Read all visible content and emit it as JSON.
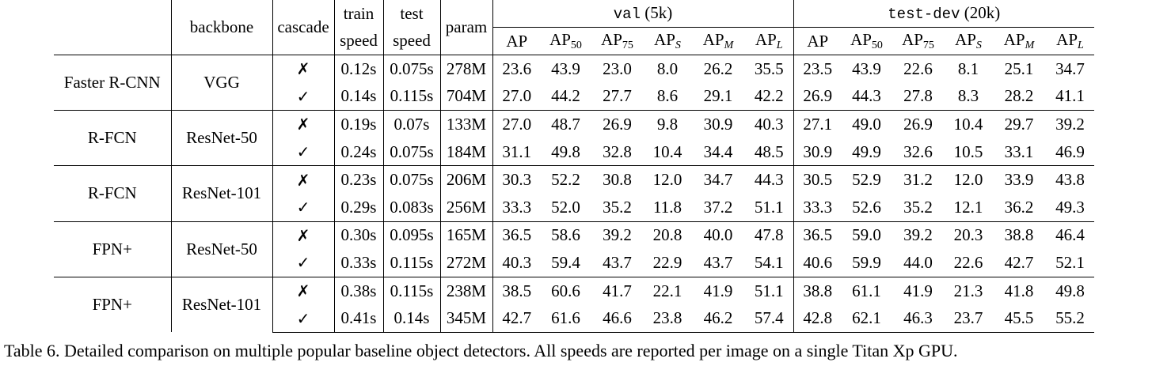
{
  "header": {
    "backbone": "backbone",
    "cascade": "cascade",
    "train": "train",
    "train_speed": "speed",
    "test": "test",
    "test_speed": "speed",
    "param": "param",
    "val_mono": "val",
    "val_size": "(5k)",
    "testdev_mono": "test-dev",
    "testdev_size": "(20k)",
    "metrics": [
      {
        "base": "AP",
        "sub": "",
        "italic": false
      },
      {
        "base": "AP",
        "sub": "50",
        "italic": false
      },
      {
        "base": "AP",
        "sub": "75",
        "italic": false
      },
      {
        "base": "AP",
        "sub": "S",
        "italic": true
      },
      {
        "base": "AP",
        "sub": "M",
        "italic": true
      },
      {
        "base": "AP",
        "sub": "L",
        "italic": true
      }
    ]
  },
  "marks": {
    "no": "✗",
    "yes": "✓"
  },
  "groups": [
    {
      "detector": "Faster R-CNN",
      "backbone": "VGG",
      "rows": [
        {
          "cascade": "no",
          "train": "0.12s",
          "test": "0.075s",
          "param": "278M",
          "val": [
            "23.6",
            "43.9",
            "23.0",
            "8.0",
            "26.2",
            "35.5"
          ],
          "testdev": [
            "23.5",
            "43.9",
            "22.6",
            "8.1",
            "25.1",
            "34.7"
          ]
        },
        {
          "cascade": "yes",
          "train": "0.14s",
          "test": "0.115s",
          "param": "704M",
          "val": [
            "27.0",
            "44.2",
            "27.7",
            "8.6",
            "29.1",
            "42.2"
          ],
          "testdev": [
            "26.9",
            "44.3",
            "27.8",
            "8.3",
            "28.2",
            "41.1"
          ]
        }
      ]
    },
    {
      "detector": "R-FCN",
      "backbone": "ResNet-50",
      "rows": [
        {
          "cascade": "no",
          "train": "0.19s",
          "test": "0.07s",
          "param": "133M",
          "val": [
            "27.0",
            "48.7",
            "26.9",
            "9.8",
            "30.9",
            "40.3"
          ],
          "testdev": [
            "27.1",
            "49.0",
            "26.9",
            "10.4",
            "29.7",
            "39.2"
          ]
        },
        {
          "cascade": "yes",
          "train": "0.24s",
          "test": "0.075s",
          "param": "184M",
          "val": [
            "31.1",
            "49.8",
            "32.8",
            "10.4",
            "34.4",
            "48.5"
          ],
          "testdev": [
            "30.9",
            "49.9",
            "32.6",
            "10.5",
            "33.1",
            "46.9"
          ]
        }
      ]
    },
    {
      "detector": "R-FCN",
      "backbone": "ResNet-101",
      "rows": [
        {
          "cascade": "no",
          "train": "0.23s",
          "test": "0.075s",
          "param": "206M",
          "val": [
            "30.3",
            "52.2",
            "30.8",
            "12.0",
            "34.7",
            "44.3"
          ],
          "testdev": [
            "30.5",
            "52.9",
            "31.2",
            "12.0",
            "33.9",
            "43.8"
          ]
        },
        {
          "cascade": "yes",
          "train": "0.29s",
          "test": "0.083s",
          "param": "256M",
          "val": [
            "33.3",
            "52.0",
            "35.2",
            "11.8",
            "37.2",
            "51.1"
          ],
          "testdev": [
            "33.3",
            "52.6",
            "35.2",
            "12.1",
            "36.2",
            "49.3"
          ]
        }
      ]
    },
    {
      "detector": "FPN+",
      "backbone": "ResNet-50",
      "rows": [
        {
          "cascade": "no",
          "train": "0.30s",
          "test": "0.095s",
          "param": "165M",
          "val": [
            "36.5",
            "58.6",
            "39.2",
            "20.8",
            "40.0",
            "47.8"
          ],
          "testdev": [
            "36.5",
            "59.0",
            "39.2",
            "20.3",
            "38.8",
            "46.4"
          ]
        },
        {
          "cascade": "yes",
          "train": "0.33s",
          "test": "0.115s",
          "param": "272M",
          "val": [
            "40.3",
            "59.4",
            "43.7",
            "22.9",
            "43.7",
            "54.1"
          ],
          "testdev": [
            "40.6",
            "59.9",
            "44.0",
            "22.6",
            "42.7",
            "52.1"
          ]
        }
      ]
    },
    {
      "detector": "FPN+",
      "backbone": "ResNet-101",
      "rows": [
        {
          "cascade": "no",
          "train": "0.38s",
          "test": "0.115s",
          "param": "238M",
          "val": [
            "38.5",
            "60.6",
            "41.7",
            "22.1",
            "41.9",
            "51.1"
          ],
          "testdev": [
            "38.8",
            "61.1",
            "41.9",
            "21.3",
            "41.8",
            "49.8"
          ]
        },
        {
          "cascade": "yes",
          "train": "0.41s",
          "test": "0.14s",
          "param": "345M",
          "val": [
            "42.7",
            "61.6",
            "46.6",
            "23.8",
            "46.2",
            "57.4"
          ],
          "testdev": [
            "42.8",
            "62.1",
            "46.3",
            "23.7",
            "45.5",
            "55.2"
          ]
        }
      ]
    }
  ],
  "caption": "Table 6. Detailed comparison on multiple popular baseline object detectors. All speeds are reported per image on a single Titan Xp GPU."
}
